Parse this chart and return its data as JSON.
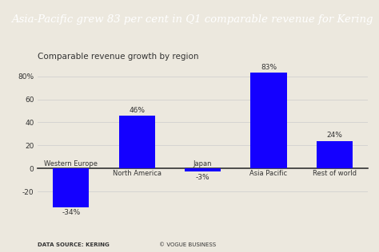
{
  "title": "Asia-Pacific grew 83 per cent in Q1 comparable revenue for Kering",
  "subtitle": "Comparable revenue growth by region",
  "categories": [
    "Western Europe",
    "North America",
    "Japan",
    "Asia Pacific",
    "Rest of world"
  ],
  "values": [
    -34,
    46,
    -3,
    83,
    24
  ],
  "bar_labels": [
    "-34%",
    "46%",
    "-3%",
    "83%",
    "24%"
  ],
  "bar_color": "#1400ff",
  "background_color": "#ece8de",
  "title_background": "#111111",
  "title_color": "#ffffff",
  "axis_color": "#333333",
  "grid_color": "#cccccc",
  "yticks": [
    -20,
    0,
    20,
    40,
    60,
    80
  ],
  "ylim": [
    -42,
    96
  ],
  "footer_left": "DATA SOURCE: KERING",
  "footer_right": "© VOGUE BUSINESS",
  "subtitle_fontsize": 7.5,
  "label_fontsize": 6.5,
  "cat_fontsize": 6.0,
  "footer_fontsize": 5.0,
  "title_fontsize": 9.5,
  "ytick_fontsize": 6.5
}
